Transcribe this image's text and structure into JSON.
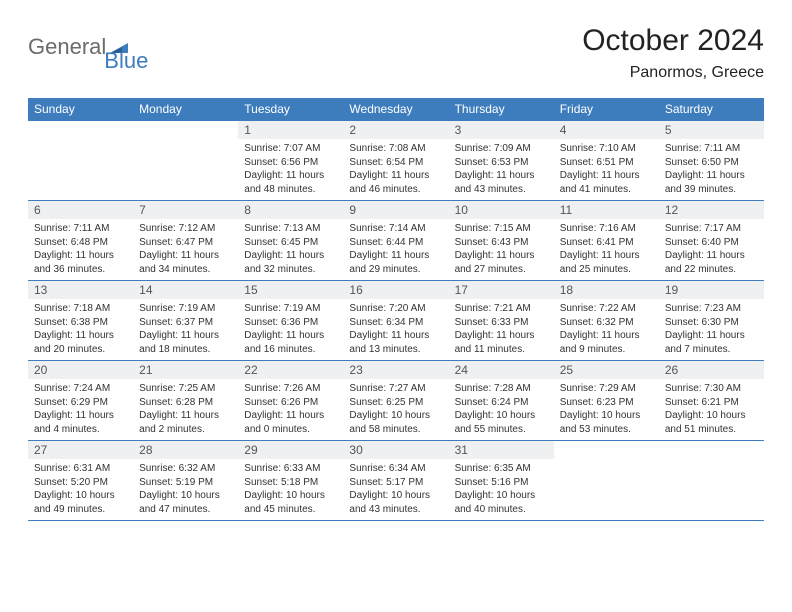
{
  "logo": {
    "gray": "General",
    "blue": "Blue"
  },
  "title": "October 2024",
  "location": "Panormos, Greece",
  "colors": {
    "header_bg": "#3d7dbd",
    "header_text": "#ffffff",
    "daynum_bg": "#eef0f2",
    "daynum_text": "#555555",
    "cell_text": "#333333",
    "rule": "#3d7dbd",
    "logo_gray": "#6b6b6b",
    "logo_blue": "#3d7dbd"
  },
  "typography": {
    "title_fontsize": 30,
    "location_fontsize": 16,
    "dayheader_fontsize": 12,
    "daynum_fontsize": 12,
    "cell_fontsize": 10,
    "family": "Arial"
  },
  "day_headers": [
    "Sunday",
    "Monday",
    "Tuesday",
    "Wednesday",
    "Thursday",
    "Friday",
    "Saturday"
  ],
  "first_weekday_index": 2,
  "days_in_month": 31,
  "labels": {
    "sunrise": "Sunrise:",
    "sunset": "Sunset:",
    "daylight": "Daylight:"
  },
  "days": [
    {
      "n": 1,
      "sunrise": "7:07 AM",
      "sunset": "6:56 PM",
      "daylight": "11 hours and 48 minutes."
    },
    {
      "n": 2,
      "sunrise": "7:08 AM",
      "sunset": "6:54 PM",
      "daylight": "11 hours and 46 minutes."
    },
    {
      "n": 3,
      "sunrise": "7:09 AM",
      "sunset": "6:53 PM",
      "daylight": "11 hours and 43 minutes."
    },
    {
      "n": 4,
      "sunrise": "7:10 AM",
      "sunset": "6:51 PM",
      "daylight": "11 hours and 41 minutes."
    },
    {
      "n": 5,
      "sunrise": "7:11 AM",
      "sunset": "6:50 PM",
      "daylight": "11 hours and 39 minutes."
    },
    {
      "n": 6,
      "sunrise": "7:11 AM",
      "sunset": "6:48 PM",
      "daylight": "11 hours and 36 minutes."
    },
    {
      "n": 7,
      "sunrise": "7:12 AM",
      "sunset": "6:47 PM",
      "daylight": "11 hours and 34 minutes."
    },
    {
      "n": 8,
      "sunrise": "7:13 AM",
      "sunset": "6:45 PM",
      "daylight": "11 hours and 32 minutes."
    },
    {
      "n": 9,
      "sunrise": "7:14 AM",
      "sunset": "6:44 PM",
      "daylight": "11 hours and 29 minutes."
    },
    {
      "n": 10,
      "sunrise": "7:15 AM",
      "sunset": "6:43 PM",
      "daylight": "11 hours and 27 minutes."
    },
    {
      "n": 11,
      "sunrise": "7:16 AM",
      "sunset": "6:41 PM",
      "daylight": "11 hours and 25 minutes."
    },
    {
      "n": 12,
      "sunrise": "7:17 AM",
      "sunset": "6:40 PM",
      "daylight": "11 hours and 22 minutes."
    },
    {
      "n": 13,
      "sunrise": "7:18 AM",
      "sunset": "6:38 PM",
      "daylight": "11 hours and 20 minutes."
    },
    {
      "n": 14,
      "sunrise": "7:19 AM",
      "sunset": "6:37 PM",
      "daylight": "11 hours and 18 minutes."
    },
    {
      "n": 15,
      "sunrise": "7:19 AM",
      "sunset": "6:36 PM",
      "daylight": "11 hours and 16 minutes."
    },
    {
      "n": 16,
      "sunrise": "7:20 AM",
      "sunset": "6:34 PM",
      "daylight": "11 hours and 13 minutes."
    },
    {
      "n": 17,
      "sunrise": "7:21 AM",
      "sunset": "6:33 PM",
      "daylight": "11 hours and 11 minutes."
    },
    {
      "n": 18,
      "sunrise": "7:22 AM",
      "sunset": "6:32 PM",
      "daylight": "11 hours and 9 minutes."
    },
    {
      "n": 19,
      "sunrise": "7:23 AM",
      "sunset": "6:30 PM",
      "daylight": "11 hours and 7 minutes."
    },
    {
      "n": 20,
      "sunrise": "7:24 AM",
      "sunset": "6:29 PM",
      "daylight": "11 hours and 4 minutes."
    },
    {
      "n": 21,
      "sunrise": "7:25 AM",
      "sunset": "6:28 PM",
      "daylight": "11 hours and 2 minutes."
    },
    {
      "n": 22,
      "sunrise": "7:26 AM",
      "sunset": "6:26 PM",
      "daylight": "11 hours and 0 minutes."
    },
    {
      "n": 23,
      "sunrise": "7:27 AM",
      "sunset": "6:25 PM",
      "daylight": "10 hours and 58 minutes."
    },
    {
      "n": 24,
      "sunrise": "7:28 AM",
      "sunset": "6:24 PM",
      "daylight": "10 hours and 55 minutes."
    },
    {
      "n": 25,
      "sunrise": "7:29 AM",
      "sunset": "6:23 PM",
      "daylight": "10 hours and 53 minutes."
    },
    {
      "n": 26,
      "sunrise": "7:30 AM",
      "sunset": "6:21 PM",
      "daylight": "10 hours and 51 minutes."
    },
    {
      "n": 27,
      "sunrise": "6:31 AM",
      "sunset": "5:20 PM",
      "daylight": "10 hours and 49 minutes."
    },
    {
      "n": 28,
      "sunrise": "6:32 AM",
      "sunset": "5:19 PM",
      "daylight": "10 hours and 47 minutes."
    },
    {
      "n": 29,
      "sunrise": "6:33 AM",
      "sunset": "5:18 PM",
      "daylight": "10 hours and 45 minutes."
    },
    {
      "n": 30,
      "sunrise": "6:34 AM",
      "sunset": "5:17 PM",
      "daylight": "10 hours and 43 minutes."
    },
    {
      "n": 31,
      "sunrise": "6:35 AM",
      "sunset": "5:16 PM",
      "daylight": "10 hours and 40 minutes."
    }
  ]
}
